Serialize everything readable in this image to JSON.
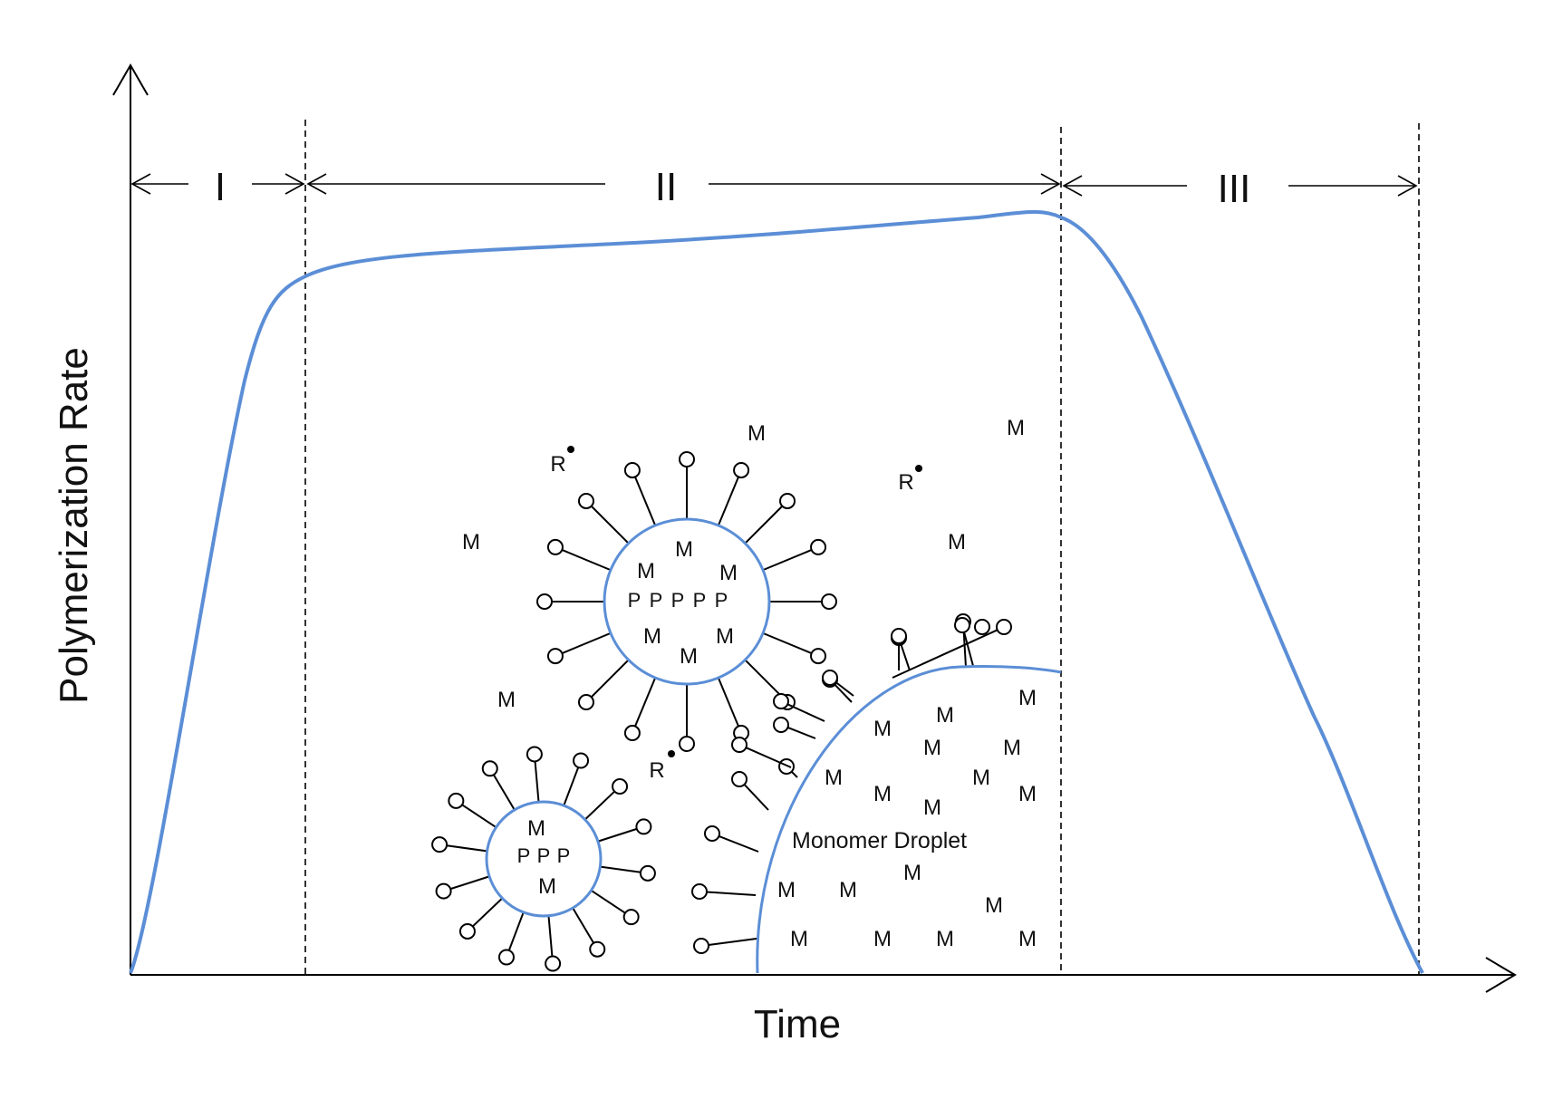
{
  "axes": {
    "ylabel": "Polymerization Rate",
    "xlabel": "Time"
  },
  "regions": [
    "I",
    "II",
    "III"
  ],
  "species": {
    "monomer": "M",
    "polymer": "P",
    "radical": "R"
  },
  "droplet_label": "Monomer Droplet",
  "colors": {
    "curve": "#5B8ED6",
    "micelle_outline": "#5B8ED6",
    "line": "#000000"
  },
  "icons": [
    "surfactant-icon",
    "radical-dot-icon"
  ]
}
